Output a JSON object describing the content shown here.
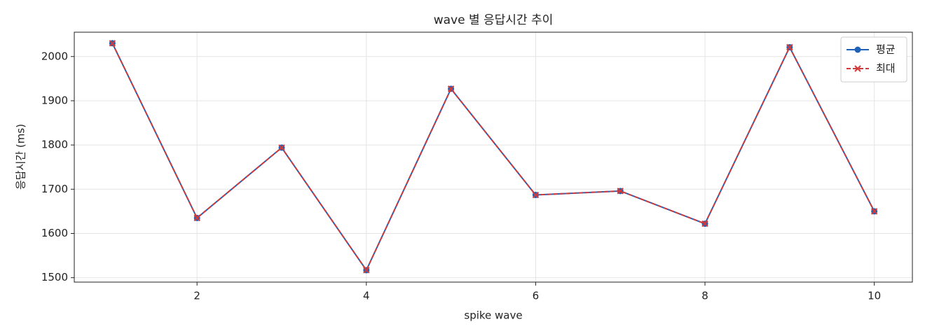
{
  "chart_data": {
    "type": "line",
    "title": "wave 별 응답시간 추이",
    "xlabel": "spike wave",
    "ylabel": "응답시간 (ms)",
    "x": [
      1,
      2,
      3,
      4,
      5,
      6,
      7,
      8,
      9,
      10
    ],
    "series": [
      {
        "name": "평균",
        "color": "#1f63b8",
        "marker": "circle",
        "linestyle": "solid",
        "values": [
          2030,
          1635,
          1794,
          1517,
          1927,
          1687,
          1696,
          1622,
          2021,
          1650
        ]
      },
      {
        "name": "최대",
        "color": "#d03a3a",
        "marker": "x",
        "linestyle": "dashed",
        "values": [
          2030,
          1635,
          1794,
          1517,
          1927,
          1687,
          1696,
          1622,
          2021,
          1650
        ]
      }
    ],
    "xlim": [
      0.55,
      10.45
    ],
    "xticks": [
      2,
      4,
      6,
      8,
      10
    ],
    "ylim": [
      1490,
      2055
    ],
    "yticks": [
      1500,
      1600,
      1700,
      1800,
      1900,
      2000
    ],
    "grid": true,
    "legend": "upper right"
  }
}
